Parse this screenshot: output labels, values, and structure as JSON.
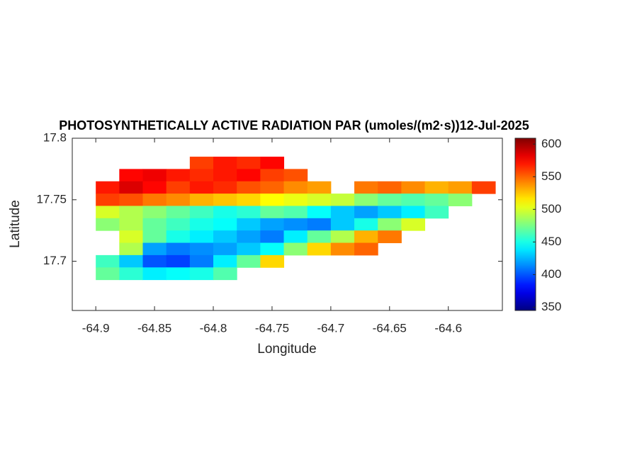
{
  "chart_data": {
    "type": "heatmap",
    "title": "PHOTOSYNTHETICALLY ACTIVE RADIATION PAR (umoles/(m2·s))12-Jul-2025",
    "xlabel": "Longitude",
    "ylabel": "Latitude",
    "colormap": "jet",
    "x": [
      -64.89,
      -64.87,
      -64.85,
      -64.83,
      -64.81,
      -64.79,
      -64.77,
      -64.75,
      -64.73,
      -64.71,
      -64.69,
      -64.67,
      -64.65,
      -64.63,
      -64.61,
      -64.59,
      -64.57
    ],
    "y": [
      17.78,
      17.77,
      17.76,
      17.75,
      17.74,
      17.73,
      17.72,
      17.71,
      17.7,
      17.69
    ],
    "values": [
      [
        null,
        null,
        null,
        null,
        560,
        570,
        565,
        575,
        null,
        null,
        null,
        null,
        null,
        null,
        null,
        null,
        null
      ],
      [
        null,
        575,
        580,
        570,
        565,
        570,
        575,
        560,
        555,
        null,
        null,
        null,
        null,
        null,
        null,
        null,
        null
      ],
      [
        570,
        585,
        575,
        560,
        570,
        565,
        555,
        550,
        540,
        535,
        null,
        545,
        550,
        540,
        530,
        535,
        560
      ],
      [
        560,
        555,
        545,
        540,
        530,
        525,
        520,
        510,
        505,
        500,
        495,
        480,
        470,
        465,
        470,
        480,
        null
      ],
      [
        500,
        490,
        480,
        470,
        460,
        450,
        455,
        470,
        465,
        445,
        430,
        420,
        430,
        440,
        460,
        null,
        null
      ],
      [
        480,
        490,
        470,
        460,
        450,
        445,
        430,
        420,
        415,
        410,
        430,
        450,
        480,
        500,
        null,
        null,
        null
      ],
      [
        null,
        500,
        470,
        450,
        440,
        430,
        420,
        410,
        440,
        470,
        490,
        530,
        545,
        null,
        null,
        null,
        null
      ],
      [
        null,
        490,
        420,
        410,
        415,
        420,
        430,
        445,
        480,
        520,
        540,
        550,
        null,
        null,
        null,
        null,
        null
      ],
      [
        460,
        430,
        400,
        395,
        410,
        440,
        470,
        520,
        null,
        null,
        null,
        null,
        null,
        null,
        null,
        null,
        null
      ],
      [
        470,
        455,
        440,
        445,
        450,
        465,
        null,
        null,
        null,
        null,
        null,
        null,
        null,
        null,
        null,
        null,
        null
      ]
    ],
    "xlim": [
      -64.92,
      -64.554
    ],
    "ylim": [
      17.66,
      17.8
    ],
    "xticks": [
      -64.9,
      -64.85,
      -64.8,
      -64.75,
      -64.7,
      -64.65,
      -64.6
    ],
    "yticks": [
      17.7,
      17.75,
      17.8
    ],
    "colorbar": {
      "clim": [
        345,
        609
      ],
      "ticks": [
        350,
        400,
        450,
        500,
        550,
        600
      ]
    }
  }
}
